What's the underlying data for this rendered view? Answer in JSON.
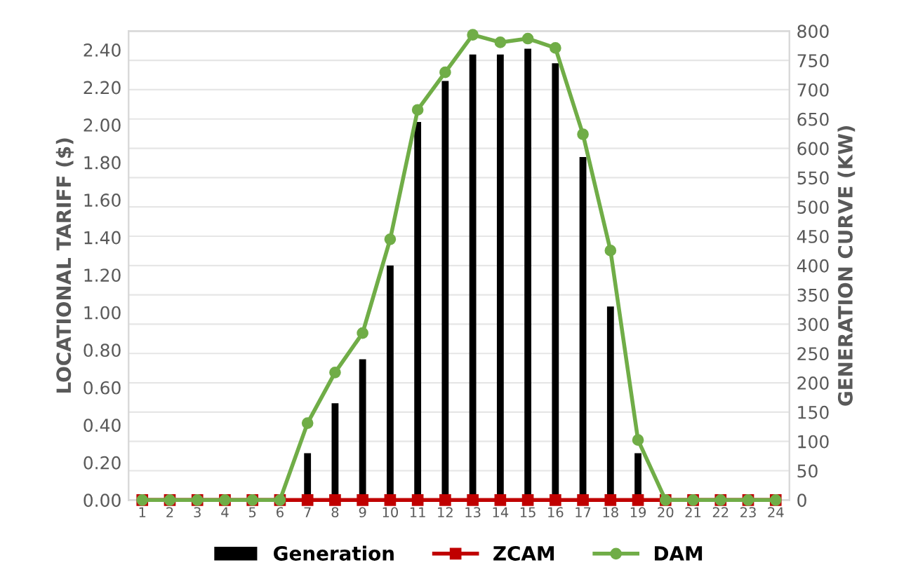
{
  "chart_data": {
    "type": "bar",
    "xlabel": null,
    "ylabel": "LOCATIONAL TARIFF ($)",
    "y2label": "GENERATION CURVE (KW)",
    "categories": [
      "1",
      "2",
      "3",
      "4",
      "5",
      "6",
      "7",
      "8",
      "9",
      "10",
      "11",
      "12",
      "13",
      "14",
      "15",
      "16",
      "17",
      "18",
      "19",
      "20",
      "21",
      "22",
      "23",
      "24"
    ],
    "series": [
      {
        "name": "Generation",
        "axis": "y2",
        "color": "#000000",
        "values": [
          0,
          0,
          0,
          0,
          0,
          0,
          80,
          165,
          240,
          400,
          645,
          715,
          760,
          760,
          770,
          745,
          585,
          330,
          80,
          0,
          0,
          0,
          0,
          0
        ]
      },
      {
        "name": "ZCAM",
        "type": "line",
        "axis": "y",
        "color": "#c00000",
        "marker": "square",
        "values": [
          0,
          0,
          0,
          0,
          0,
          0,
          0,
          0,
          0,
          0,
          0,
          0,
          0,
          0,
          0,
          0,
          0,
          0,
          0,
          0,
          0,
          0,
          0,
          0
        ]
      },
      {
        "name": "DAM",
        "type": "line",
        "axis": "y",
        "color": "#70ad47",
        "marker": "circle",
        "values": [
          0,
          0,
          0,
          0,
          0,
          0,
          0.41,
          0.68,
          0.89,
          1.39,
          2.08,
          2.28,
          2.48,
          2.44,
          2.46,
          2.41,
          1.95,
          1.33,
          0.32,
          0,
          0,
          0,
          0,
          0
        ]
      }
    ],
    "ylim": [
      0,
      2.5
    ],
    "yticks": [
      {
        "value": 0,
        "label": "0.00"
      },
      {
        "value": 0.2,
        "label": "0.20"
      },
      {
        "value": 0.4,
        "label": "0.40"
      },
      {
        "value": 0.6,
        "label": "0.60"
      },
      {
        "value": 0.8,
        "label": "0.80"
      },
      {
        "value": 1.0,
        "label": "1.00"
      },
      {
        "value": 1.2,
        "label": "1.20"
      },
      {
        "value": 1.4,
        "label": "1.40"
      },
      {
        "value": 1.6,
        "label": "1.60"
      },
      {
        "value": 1.8,
        "label": "1.80"
      },
      {
        "value": 2.0,
        "label": "2.00"
      },
      {
        "value": 2.2,
        "label": "2.20"
      },
      {
        "value": 2.4,
        "label": "2.40"
      }
    ],
    "y2lim": [
      0,
      800
    ],
    "y2ticks": [
      0,
      50,
      100,
      150,
      200,
      250,
      300,
      350,
      400,
      450,
      500,
      550,
      600,
      650,
      700,
      750,
      800
    ],
    "grid": "y",
    "legend": "bottom"
  }
}
